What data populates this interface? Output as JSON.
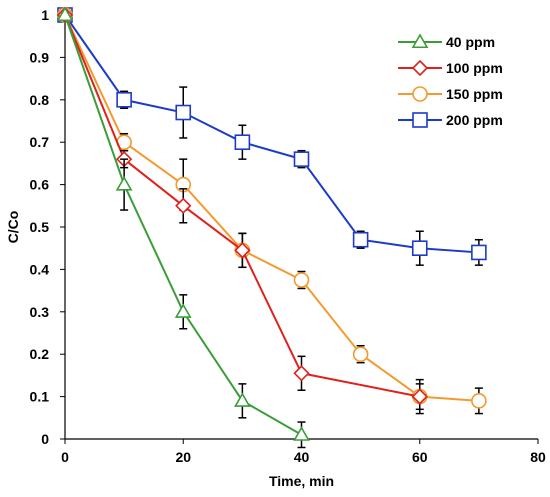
{
  "chart_data": {
    "type": "line",
    "title": "",
    "xlabel": "Time, min",
    "ylabel": "C/Co",
    "xlim": [
      0,
      80
    ],
    "ylim": [
      0,
      1
    ],
    "xticks": [
      "0",
      "20",
      "40",
      "60",
      "80"
    ],
    "yticks": [
      "0",
      "0.1",
      "0.2",
      "0.3",
      "0.4",
      "0.5",
      "0.6",
      "0.7",
      "0.8",
      "0.9",
      "1"
    ],
    "legend_position": "top-right",
    "grid": false,
    "series": [
      {
        "name": "40 ppm",
        "color": "#3a9d3a",
        "marker": "triangle",
        "x": [
          0,
          10,
          20,
          30,
          40
        ],
        "y": [
          1.0,
          0.6,
          0.3,
          0.09,
          0.01
        ],
        "error": [
          0.0,
          0.06,
          0.04,
          0.04,
          0.03
        ]
      },
      {
        "name": "100 ppm",
        "color": "#e0201b",
        "marker": "diamond",
        "x": [
          0,
          10,
          20,
          30,
          40,
          60
        ],
        "y": [
          1.0,
          0.66,
          0.55,
          0.445,
          0.155,
          0.1
        ],
        "error": [
          0.0,
          0.02,
          0.04,
          0.04,
          0.04,
          0.03
        ]
      },
      {
        "name": "150 ppm",
        "color": "#f39a2e",
        "marker": "circle",
        "x": [
          0,
          10,
          20,
          30,
          40,
          50,
          60,
          70
        ],
        "y": [
          1.0,
          0.7,
          0.6,
          0.445,
          0.375,
          0.2,
          0.1,
          0.09
        ],
        "error": [
          0.0,
          0.02,
          0.06,
          0.04,
          0.02,
          0.02,
          0.04,
          0.03
        ]
      },
      {
        "name": "200 ppm",
        "color": "#1c3cc8",
        "marker": "square",
        "x": [
          0,
          10,
          20,
          30,
          40,
          50,
          60,
          70
        ],
        "y": [
          1.0,
          0.8,
          0.77,
          0.7,
          0.66,
          0.47,
          0.45,
          0.44
        ],
        "error": [
          0.0,
          0.02,
          0.06,
          0.04,
          0.02,
          0.02,
          0.04,
          0.03
        ]
      }
    ]
  }
}
